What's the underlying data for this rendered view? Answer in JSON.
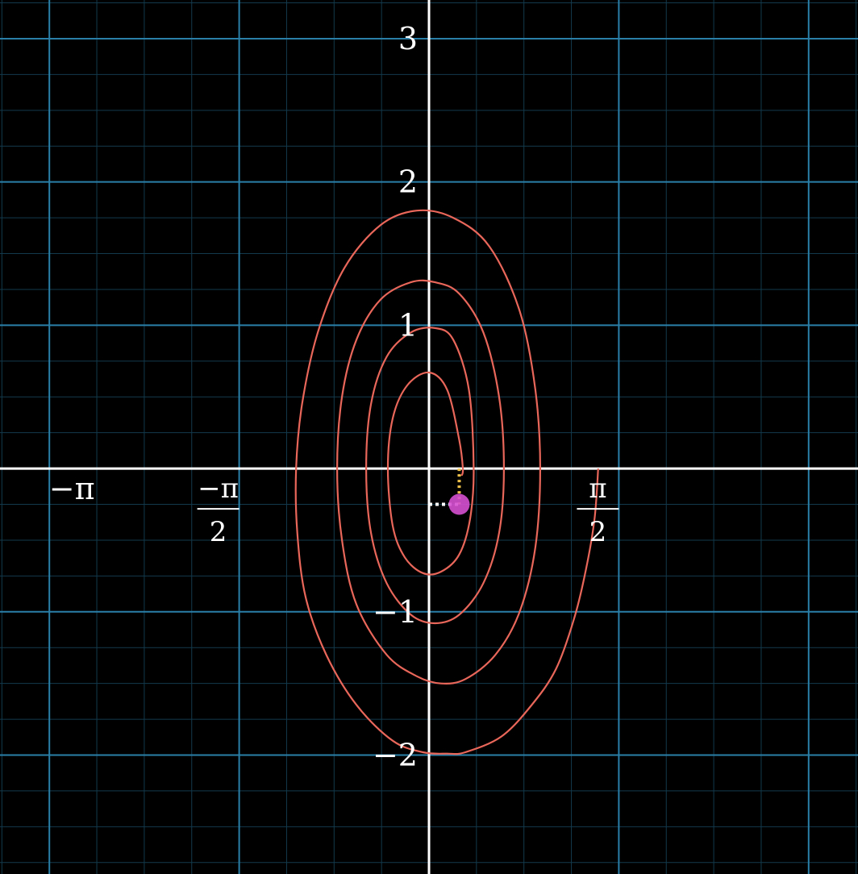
{
  "chart_data": {
    "type": "line",
    "title": "",
    "xlabel": "",
    "ylabel": "",
    "xlim": [
      -3.55,
      3.55
    ],
    "ylim": [
      -2.83,
      3.27
    ],
    "grid": true,
    "colors": {
      "background": "#000000",
      "axes": "#ffffff",
      "major_grid": "#2a7fa8",
      "minor_grid": "#123a4c",
      "curve": "#e8665a",
      "point": "#d64fd0",
      "vertical_guide": "#f2c34a",
      "horizontal_guide": "#ffffff"
    },
    "x_ticks": [
      {
        "value": -3.1416,
        "kind": "single",
        "label": "−π"
      },
      {
        "value": -1.5708,
        "kind": "fraction",
        "numerator": "−π",
        "denominator": "2"
      },
      {
        "value": 1.5708,
        "kind": "fraction",
        "numerator": "π",
        "denominator": "2"
      }
    ],
    "y_ticks": [
      {
        "value": 3,
        "label": "3"
      },
      {
        "value": 2,
        "label": "2"
      },
      {
        "value": 1,
        "label": "1"
      },
      {
        "value": -1,
        "label": "−1"
      },
      {
        "value": -2,
        "label": "−2"
      }
    ],
    "series": [
      {
        "x": [
          1.4,
          1.37,
          1.3,
          1.2,
          1.05,
          0.85,
          0.6,
          0.3,
          0.15,
          -0.05,
          -0.3,
          -0.6,
          -0.85,
          -1.02,
          -1.09,
          -1.1,
          -1.05,
          -0.92,
          -0.7,
          -0.4,
          -0.1,
          0.2,
          0.5,
          0.75,
          0.88,
          0.92,
          0.88,
          0.75,
          0.55,
          0.3,
          0.1,
          -0.1,
          -0.35,
          -0.6,
          -0.72,
          -0.76,
          -0.72,
          -0.6,
          -0.4,
          -0.15,
          0.05,
          0.25,
          0.45,
          0.58,
          0.62,
          0.58,
          0.45,
          0.25,
          0.05,
          -0.15,
          -0.35,
          -0.48,
          -0.52,
          -0.48,
          -0.35,
          -0.15,
          0.05,
          0.2,
          0.33,
          0.37,
          0.34,
          0.25,
          0.1,
          -0.05,
          -0.2,
          -0.3,
          -0.34,
          -0.3,
          -0.18,
          0.0,
          0.15,
          0.25,
          0.28,
          0.27
        ],
        "y": [
          0.0,
          -0.35,
          -0.7,
          -1.05,
          -1.4,
          -1.65,
          -1.87,
          -1.98,
          -1.99,
          -1.98,
          -1.9,
          -1.65,
          -1.3,
          -0.9,
          -0.45,
          0.0,
          0.45,
          0.95,
          1.4,
          1.7,
          1.8,
          1.75,
          1.55,
          1.1,
          0.55,
          0.0,
          -0.55,
          -1.0,
          -1.3,
          -1.47,
          -1.5,
          -1.45,
          -1.3,
          -0.95,
          -0.5,
          0.0,
          0.5,
          0.9,
          1.18,
          1.3,
          1.3,
          1.22,
          0.95,
          0.5,
          0.0,
          -0.45,
          -0.8,
          -1.02,
          -1.08,
          -1.02,
          -0.8,
          -0.45,
          0.0,
          0.45,
          0.78,
          0.95,
          0.98,
          0.9,
          0.55,
          0.0,
          -0.35,
          -0.6,
          -0.72,
          -0.73,
          -0.62,
          -0.4,
          0.0,
          0.35,
          0.58,
          0.67,
          0.55,
          0.2,
          0.0,
          -0.05
        ]
      }
    ],
    "point": {
      "x": 0.25,
      "y": -0.25
    }
  }
}
